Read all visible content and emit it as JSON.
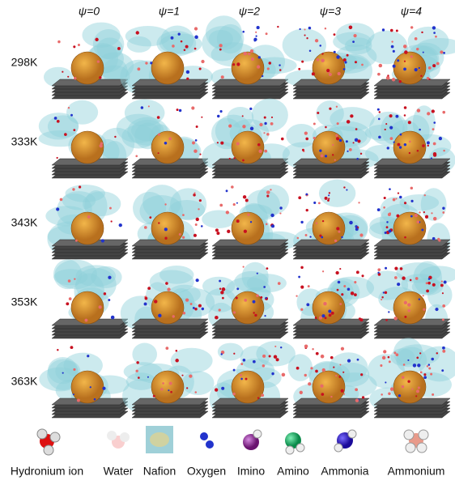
{
  "columns": [
    "ψ=0",
    "ψ=1",
    "ψ=2",
    "ψ=3",
    "ψ=4"
  ],
  "rows": [
    "298K",
    "333K",
    "343K",
    "353K",
    "363K"
  ],
  "legend": [
    "Hydronium ion",
    "Water",
    "Nafion",
    "Oxygen",
    "Imino",
    "Amino",
    "Ammonia",
    "Ammonium"
  ]
}
